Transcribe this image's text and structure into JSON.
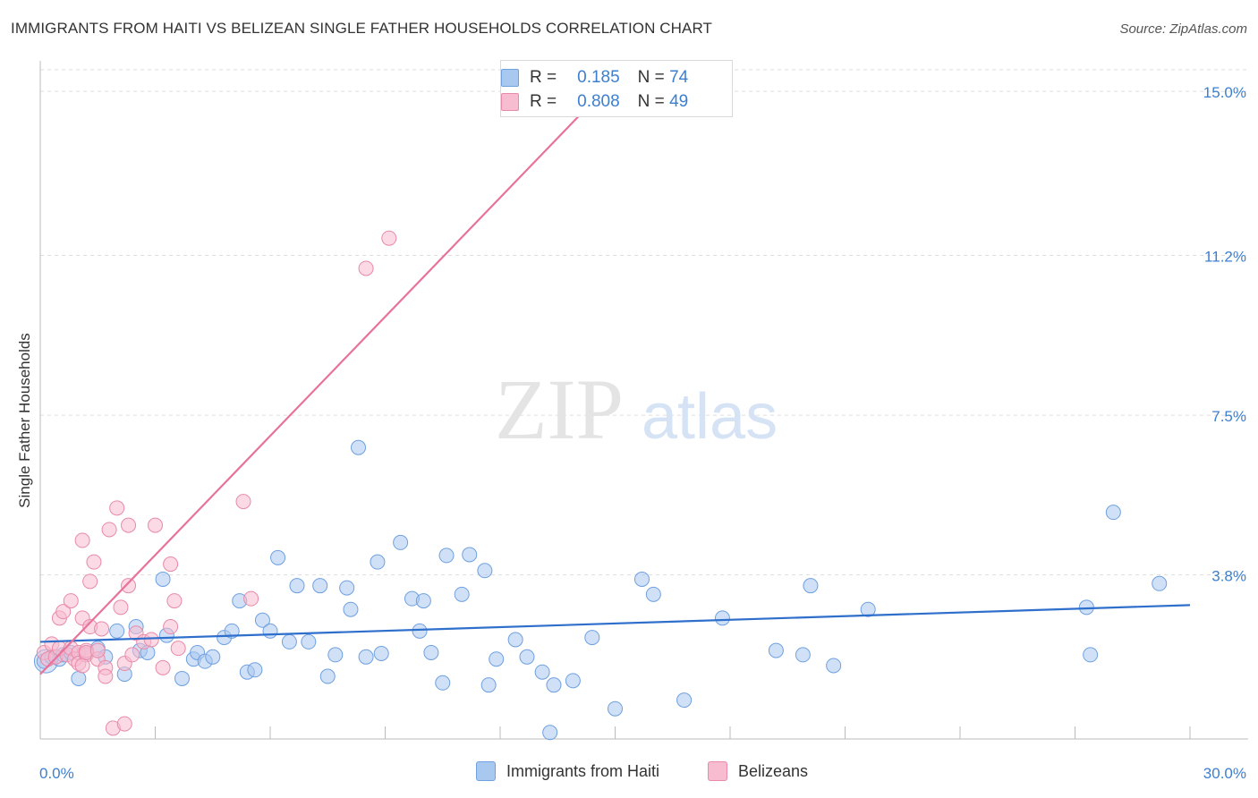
{
  "title": "IMMIGRANTS FROM HAITI VS BELIZEAN SINGLE FATHER HOUSEHOLDS CORRELATION CHART",
  "source": "Source: ZipAtlas.com",
  "watermark": {
    "zip": "ZIP",
    "atlas": "atlas"
  },
  "legend": {
    "r_label": "R =",
    "n_label": "N =",
    "rows": [
      {
        "r": "0.185",
        "n": "74",
        "color": "#a9c8f0",
        "border": "#6fa0e0"
      },
      {
        "r": "0.808",
        "n": "49",
        "color": "#f7bcd0",
        "border": "#e88aa8"
      }
    ]
  },
  "bottom_legend": [
    {
      "label": "Immigrants from Haiti",
      "color": "#a9c8f0",
      "border": "#6fa0e0"
    },
    {
      "label": "Belizeans",
      "color": "#f7bcd0",
      "border": "#e88aa8"
    }
  ],
  "chart_data": {
    "type": "scatter",
    "title": "IMMIGRANTS FROM HAITI VS BELIZEAN SINGLE FATHER HOUSEHOLDS CORRELATION CHART",
    "xlabel": "",
    "ylabel": "Single Father Households",
    "xlim": [
      0,
      30
    ],
    "ylim": [
      0,
      15.5
    ],
    "x_tick_labels": [
      {
        "value": 0,
        "label": "0.0%"
      },
      {
        "value": 30,
        "label": "30.0%"
      }
    ],
    "y_tick_labels": [
      {
        "value": 3.8,
        "label": "3.8%"
      },
      {
        "value": 7.5,
        "label": "7.5%"
      },
      {
        "value": 11.2,
        "label": "11.2%"
      },
      {
        "value": 15.0,
        "label": "15.0%"
      }
    ],
    "x_minor_ticks": [
      3,
      6,
      9,
      12,
      15,
      18,
      21,
      24,
      27,
      30
    ],
    "grid": true,
    "legend_position": "top-center",
    "series": [
      {
        "name": "Immigrants from Haiti",
        "color": "#6fa0e0",
        "fill": "#a9c8f0",
        "trend": {
          "x": [
            0,
            30
          ],
          "y": [
            2.25,
            3.1
          ],
          "color": "#2f6fcc"
        },
        "points": [
          [
            0.1,
            1.8
          ],
          [
            0.3,
            1.9
          ],
          [
            0.5,
            1.85
          ],
          [
            0.6,
            1.95
          ],
          [
            0.8,
            2.0
          ],
          [
            1.0,
            1.4
          ],
          [
            1.2,
            2.0
          ],
          [
            1.5,
            2.1
          ],
          [
            1.7,
            1.9
          ],
          [
            2.0,
            2.5
          ],
          [
            2.2,
            1.5
          ],
          [
            2.6,
            2.05
          ],
          [
            2.5,
            2.6
          ],
          [
            2.8,
            2.0
          ],
          [
            3.2,
            3.7
          ],
          [
            3.3,
            2.4
          ],
          [
            3.7,
            1.4
          ],
          [
            4.0,
            1.85
          ],
          [
            4.1,
            2.0
          ],
          [
            4.3,
            1.8
          ],
          [
            4.5,
            1.9
          ],
          [
            4.8,
            2.35
          ],
          [
            5.0,
            2.5
          ],
          [
            5.2,
            3.2
          ],
          [
            5.4,
            1.55
          ],
          [
            5.6,
            1.6
          ],
          [
            5.8,
            2.75
          ],
          [
            6.0,
            2.5
          ],
          [
            6.2,
            4.2
          ],
          [
            6.5,
            2.25
          ],
          [
            6.7,
            3.55
          ],
          [
            7.0,
            2.25
          ],
          [
            7.3,
            3.55
          ],
          [
            7.5,
            1.45
          ],
          [
            7.7,
            1.95
          ],
          [
            8.0,
            3.5
          ],
          [
            8.1,
            3.0
          ],
          [
            8.3,
            6.75
          ],
          [
            8.5,
            1.9
          ],
          [
            8.8,
            4.1
          ],
          [
            8.9,
            1.98
          ],
          [
            9.4,
            4.55
          ],
          [
            9.7,
            3.25
          ],
          [
            9.9,
            2.5
          ],
          [
            10.0,
            3.2
          ],
          [
            10.2,
            2.0
          ],
          [
            10.5,
            1.3
          ],
          [
            10.6,
            4.25
          ],
          [
            11.0,
            3.35
          ],
          [
            11.2,
            4.27
          ],
          [
            11.6,
            3.9
          ],
          [
            11.7,
            1.25
          ],
          [
            11.9,
            1.85
          ],
          [
            12.4,
            2.3
          ],
          [
            12.7,
            1.9
          ],
          [
            13.1,
            1.55
          ],
          [
            13.3,
            0.15
          ],
          [
            13.4,
            1.25
          ],
          [
            13.9,
            1.35
          ],
          [
            14.4,
            2.35
          ],
          [
            15.0,
            0.7
          ],
          [
            15.7,
            3.7
          ],
          [
            16.0,
            3.35
          ],
          [
            16.8,
            0.9
          ],
          [
            17.8,
            2.8
          ],
          [
            19.2,
            2.05
          ],
          [
            19.9,
            1.95
          ],
          [
            20.1,
            3.55
          ],
          [
            20.7,
            1.7
          ],
          [
            21.6,
            3.0
          ],
          [
            27.3,
            3.05
          ],
          [
            28.0,
            5.25
          ],
          [
            27.4,
            1.95
          ],
          [
            29.2,
            3.6
          ]
        ]
      },
      {
        "name": "Belizeans",
        "color": "#e88aa8",
        "fill": "#f7bcd0",
        "trend": {
          "x": [
            0,
            15
          ],
          "y": [
            1.5,
            15.3
          ],
          "color": "#e8729a"
        },
        "points": [
          [
            0.1,
            2.0
          ],
          [
            0.2,
            1.85
          ],
          [
            0.3,
            2.2
          ],
          [
            0.4,
            1.9
          ],
          [
            0.5,
            2.1
          ],
          [
            0.5,
            2.8
          ],
          [
            0.6,
            2.95
          ],
          [
            0.7,
            1.95
          ],
          [
            0.8,
            2.1
          ],
          [
            0.8,
            3.2
          ],
          [
            0.9,
            1.85
          ],
          [
            1.0,
            2.0
          ],
          [
            1.0,
            1.75
          ],
          [
            1.2,
            1.95
          ],
          [
            1.2,
            2.05
          ],
          [
            1.1,
            4.6
          ],
          [
            1.1,
            2.8
          ],
          [
            1.1,
            1.7
          ],
          [
            1.2,
            2.0
          ],
          [
            1.3,
            2.6
          ],
          [
            1.3,
            3.65
          ],
          [
            1.4,
            4.1
          ],
          [
            1.5,
            1.85
          ],
          [
            1.5,
            2.05
          ],
          [
            1.6,
            2.55
          ],
          [
            1.7,
            1.65
          ],
          [
            1.7,
            1.45
          ],
          [
            1.8,
            4.85
          ],
          [
            1.9,
            0.25
          ],
          [
            2.0,
            5.35
          ],
          [
            2.1,
            3.05
          ],
          [
            2.2,
            1.75
          ],
          [
            2.2,
            0.35
          ],
          [
            2.3,
            3.55
          ],
          [
            2.4,
            1.95
          ],
          [
            2.5,
            2.45
          ],
          [
            2.7,
            2.25
          ],
          [
            2.9,
            2.3
          ],
          [
            3.0,
            4.95
          ],
          [
            3.2,
            1.65
          ],
          [
            3.4,
            2.6
          ],
          [
            3.4,
            4.05
          ],
          [
            3.5,
            3.2
          ],
          [
            3.6,
            2.1
          ],
          [
            5.3,
            5.5
          ],
          [
            5.5,
            3.25
          ],
          [
            8.5,
            10.9
          ],
          [
            9.1,
            11.6
          ],
          [
            2.3,
            4.95
          ]
        ]
      }
    ]
  }
}
